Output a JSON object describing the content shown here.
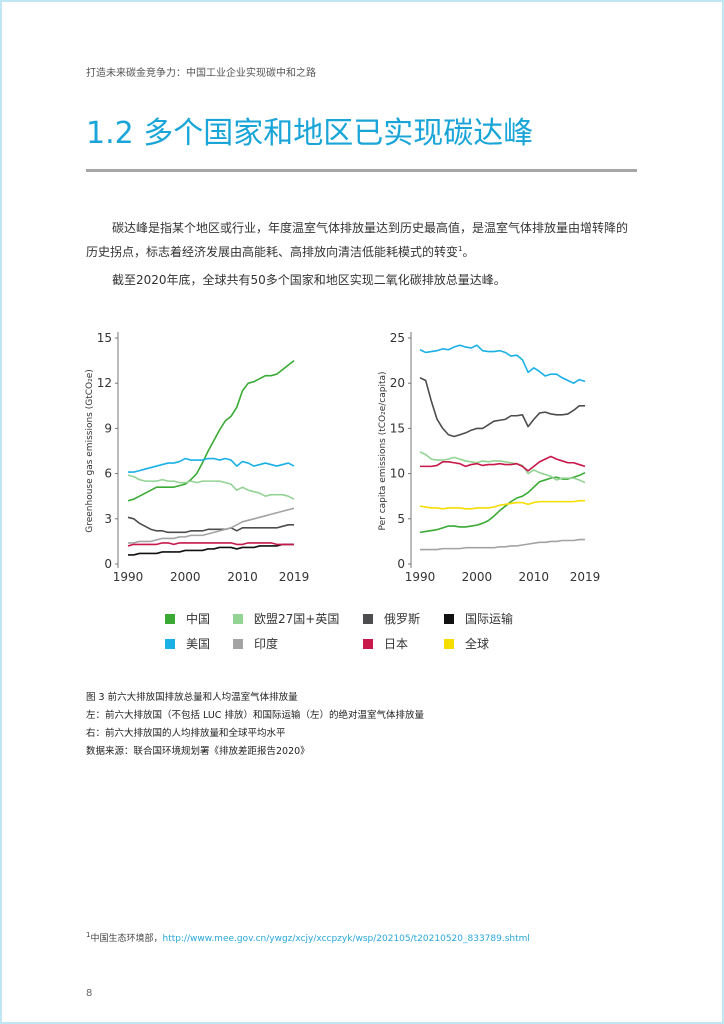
{
  "header": "打造未来碳金竞争力：中国工业企业实现碳中和之路",
  "title": "1.2 多个国家和地区已实现碳达峰",
  "paragraphs": [
    {
      "text": "碳达峰是指某个地区或行业，年度温室气体排放量达到历史最高值，是温室气体排放量由增转降的历史拐点，标志着经济发展由高能耗、高排放向清洁低能耗模式的转变",
      "note": "1",
      "end": "。"
    },
    {
      "text": "截至2020年底，全球共有50多个国家和地区实现二氧化碳排放总量达峰。"
    }
  ],
  "chart_data": [
    {
      "type": "line",
      "y_label": "Greenhouse gas emissions (GtCO₂e)",
      "x": [
        1990,
        1991,
        1992,
        1993,
        1994,
        1995,
        1996,
        1997,
        1998,
        1999,
        2000,
        2001,
        2002,
        2003,
        2004,
        2005,
        2006,
        2007,
        2008,
        2009,
        2010,
        2011,
        2012,
        2013,
        2014,
        2015,
        2016,
        2017,
        2018,
        2019
      ],
      "xlim": [
        1990,
        2019
      ],
      "xticks": [
        1990,
        2000,
        2010,
        2019
      ],
      "ylim": [
        0,
        15
      ],
      "yticks": [
        0,
        3,
        6,
        9,
        12,
        15
      ],
      "series": [
        {
          "name": "中国",
          "color": "#3aaa35",
          "values": [
            4.2,
            4.3,
            4.5,
            4.7,
            4.9,
            5.1,
            5.1,
            5.1,
            5.1,
            5.2,
            5.3,
            5.6,
            6.0,
            6.7,
            7.5,
            8.2,
            8.9,
            9.5,
            9.8,
            10.4,
            11.5,
            12.0,
            12.1,
            12.3,
            12.5,
            12.5,
            12.6,
            12.9,
            13.2,
            13.5
          ]
        },
        {
          "name": "欧盟27国+英国",
          "color": "#93d394",
          "values": [
            5.9,
            5.8,
            5.6,
            5.5,
            5.5,
            5.5,
            5.6,
            5.5,
            5.5,
            5.4,
            5.4,
            5.5,
            5.4,
            5.5,
            5.5,
            5.5,
            5.5,
            5.4,
            5.3,
            4.9,
            5.1,
            4.9,
            4.8,
            4.7,
            4.5,
            4.6,
            4.6,
            4.6,
            4.5,
            4.3
          ]
        },
        {
          "name": "俄罗斯",
          "color": "#4d4d4f",
          "values": [
            3.1,
            3.0,
            2.7,
            2.5,
            2.3,
            2.2,
            2.2,
            2.1,
            2.1,
            2.1,
            2.1,
            2.2,
            2.2,
            2.2,
            2.3,
            2.3,
            2.3,
            2.3,
            2.4,
            2.2,
            2.4,
            2.4,
            2.4,
            2.4,
            2.4,
            2.4,
            2.4,
            2.5,
            2.6,
            2.6
          ]
        },
        {
          "name": "国际运输",
          "color": "#111111",
          "values": [
            0.6,
            0.6,
            0.7,
            0.7,
            0.7,
            0.7,
            0.8,
            0.8,
            0.8,
            0.8,
            0.9,
            0.9,
            0.9,
            0.9,
            1.0,
            1.0,
            1.1,
            1.1,
            1.1,
            1.0,
            1.1,
            1.1,
            1.1,
            1.2,
            1.2,
            1.2,
            1.2,
            1.3,
            1.3,
            1.3
          ]
        },
        {
          "name": "美国",
          "color": "#1ab0e6",
          "values": [
            6.1,
            6.1,
            6.2,
            6.3,
            6.4,
            6.5,
            6.6,
            6.7,
            6.7,
            6.8,
            7.0,
            6.9,
            6.9,
            6.9,
            7.0,
            7.0,
            6.9,
            7.0,
            6.9,
            6.5,
            6.8,
            6.7,
            6.5,
            6.6,
            6.7,
            6.6,
            6.5,
            6.6,
            6.7,
            6.5
          ]
        },
        {
          "name": "印度",
          "color": "#a3a3a3",
          "values": [
            1.4,
            1.4,
            1.5,
            1.5,
            1.5,
            1.6,
            1.7,
            1.7,
            1.7,
            1.8,
            1.8,
            1.9,
            1.9,
            1.9,
            2.0,
            2.1,
            2.2,
            2.3,
            2.4,
            2.6,
            2.8,
            2.9,
            3.0,
            3.1,
            3.2,
            3.3,
            3.4,
            3.5,
            3.6,
            3.7
          ]
        },
        {
          "name": "日本",
          "color": "#c8174a",
          "values": [
            1.2,
            1.3,
            1.3,
            1.3,
            1.3,
            1.3,
            1.4,
            1.4,
            1.3,
            1.4,
            1.4,
            1.4,
            1.4,
            1.4,
            1.4,
            1.4,
            1.4,
            1.4,
            1.4,
            1.3,
            1.3,
            1.4,
            1.4,
            1.4,
            1.4,
            1.4,
            1.3,
            1.3,
            1.3,
            1.3
          ]
        }
      ]
    },
    {
      "type": "line",
      "y_label": "Per capita emissions (tCO₂e/capita)",
      "x": [
        1990,
        1991,
        1992,
        1993,
        1994,
        1995,
        1996,
        1997,
        1998,
        1999,
        2000,
        2001,
        2002,
        2003,
        2004,
        2005,
        2006,
        2007,
        2008,
        2009,
        2010,
        2011,
        2012,
        2013,
        2014,
        2015,
        2016,
        2017,
        2018,
        2019
      ],
      "xlim": [
        1990,
        2019
      ],
      "xticks": [
        1990,
        2000,
        2010,
        2019
      ],
      "ylim": [
        0,
        25
      ],
      "yticks": [
        0,
        5,
        10,
        15,
        20,
        25
      ],
      "series": [
        {
          "color": "#3aaa35",
          "values": [
            3.5,
            3.6,
            3.7,
            3.8,
            4.0,
            4.2,
            4.2,
            4.1,
            4.1,
            4.2,
            4.3,
            4.5,
            4.8,
            5.3,
            5.9,
            6.4,
            6.9,
            7.3,
            7.5,
            7.9,
            8.5,
            9.1,
            9.3,
            9.5,
            9.6,
            9.4,
            9.4,
            9.6,
            9.8,
            10.1
          ]
        },
        {
          "color": "#93d394",
          "values": [
            12.4,
            12.1,
            11.6,
            11.5,
            11.5,
            11.6,
            11.8,
            11.6,
            11.4,
            11.3,
            11.2,
            11.4,
            11.3,
            11.4,
            11.4,
            11.3,
            11.2,
            11.1,
            10.9,
            10.0,
            10.4,
            10.1,
            9.9,
            9.7,
            9.3,
            9.5,
            9.5,
            9.5,
            9.3,
            9.0
          ]
        },
        {
          "color": "#4d4d4f",
          "values": [
            20.6,
            20.3,
            18.0,
            16.0,
            15.0,
            14.3,
            14.1,
            14.3,
            14.5,
            14.8,
            15.0,
            15.0,
            15.4,
            15.8,
            15.9,
            16.0,
            16.4,
            16.4,
            16.5,
            15.2,
            16.0,
            16.7,
            16.8,
            16.6,
            16.5,
            16.5,
            16.6,
            17.0,
            17.5,
            17.5
          ]
        },
        {
          "name": "全球",
          "color": "#f5dd00",
          "values": [
            6.4,
            6.3,
            6.2,
            6.2,
            6.1,
            6.2,
            6.2,
            6.2,
            6.1,
            6.1,
            6.2,
            6.2,
            6.2,
            6.3,
            6.5,
            6.6,
            6.7,
            6.8,
            6.8,
            6.6,
            6.8,
            6.9,
            6.9,
            6.9,
            6.9,
            6.9,
            6.9,
            6.9,
            7.0,
            7.0
          ]
        },
        {
          "color": "#1ab0e6",
          "values": [
            23.7,
            23.4,
            23.5,
            23.6,
            23.8,
            23.7,
            24.0,
            24.2,
            24.0,
            23.9,
            24.2,
            23.6,
            23.5,
            23.5,
            23.6,
            23.4,
            23.0,
            23.1,
            22.6,
            21.2,
            21.7,
            21.3,
            20.8,
            21.0,
            21.0,
            20.6,
            20.3,
            20.0,
            20.4,
            20.2
          ]
        },
        {
          "color": "#a3a3a3",
          "values": [
            1.6,
            1.6,
            1.6,
            1.6,
            1.7,
            1.7,
            1.7,
            1.7,
            1.8,
            1.8,
            1.8,
            1.8,
            1.8,
            1.8,
            1.9,
            1.9,
            2.0,
            2.0,
            2.1,
            2.2,
            2.3,
            2.4,
            2.4,
            2.5,
            2.5,
            2.6,
            2.6,
            2.6,
            2.7,
            2.7
          ]
        },
        {
          "color": "#c8174a",
          "values": [
            10.8,
            10.8,
            10.8,
            10.9,
            11.3,
            11.3,
            11.2,
            11.1,
            10.8,
            11.0,
            11.1,
            10.9,
            11.0,
            11.0,
            11.1,
            11.0,
            11.0,
            11.1,
            10.8,
            10.3,
            10.8,
            11.3,
            11.6,
            11.9,
            11.6,
            11.4,
            11.2,
            11.2,
            11.0,
            10.8
          ]
        }
      ]
    }
  ],
  "caption": [
    "图 3 前六大排放国排放总量和人均温室气体排放量",
    "左：前六大排放国（不包括 LUC 排放）和国际运输（左）的绝对温室气体排放量",
    "右：前六大排放国的人均排放量和全球平均水平",
    "数据来源：联合国环境规划署《排放差距报告2020》"
  ],
  "footnote": {
    "note": "1",
    "text": "中国生态环境部，",
    "url": "http://www.mee.gov.cn/ywgz/xcjy/xccpzyk/wsp/202105/t20210520_833789.shtml"
  },
  "page_number": "8"
}
